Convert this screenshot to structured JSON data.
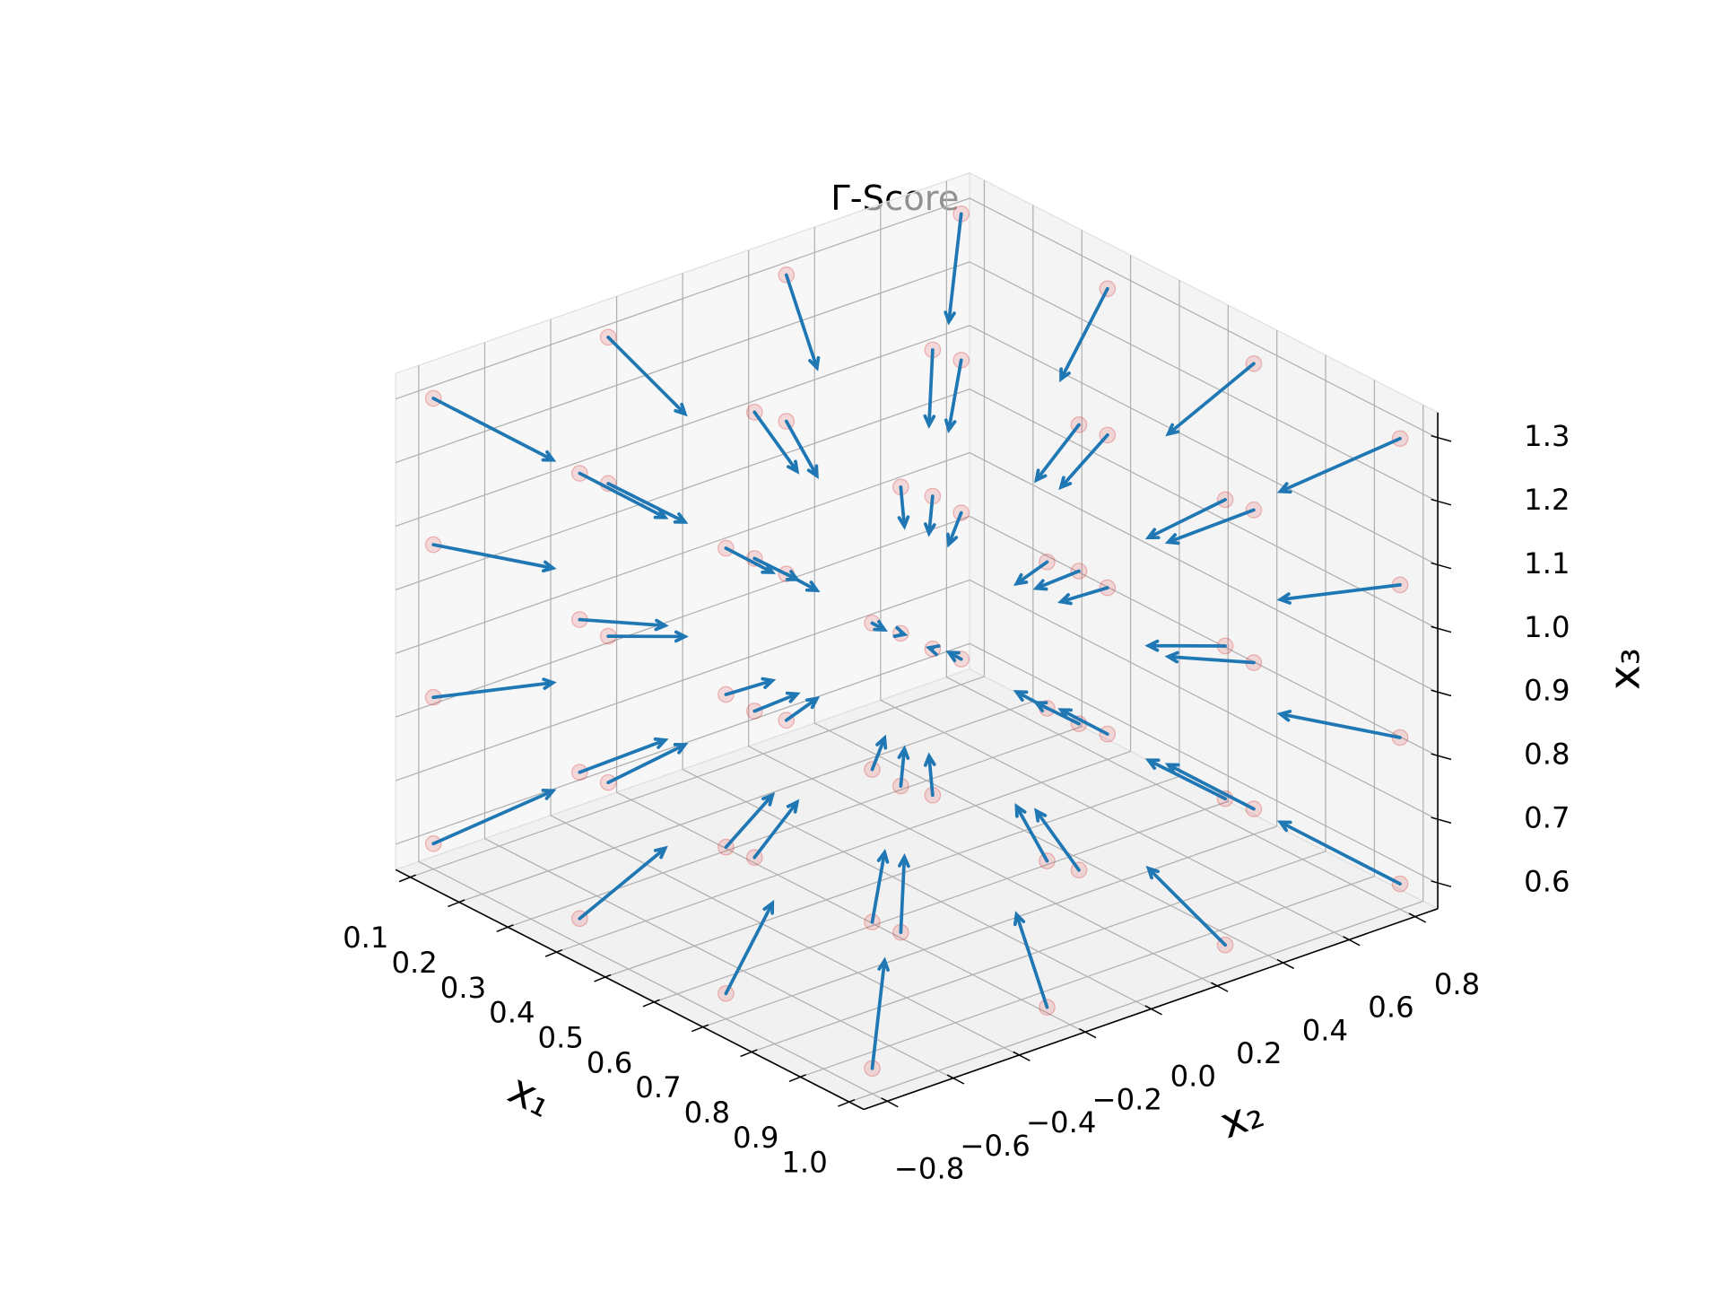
{
  "chart_data": {
    "type": "quiver3d",
    "title": "Γ-Score",
    "xlabel": "x₁",
    "ylabel": "x₂",
    "zlabel": "x₃",
    "xlim": [
      0.07,
      1.03
    ],
    "ylim": [
      -0.87,
      0.87
    ],
    "zlim": [
      0.56,
      1.34
    ],
    "xticks": [
      0.1,
      0.2,
      0.3,
      0.4,
      0.5,
      0.6,
      0.7,
      0.8,
      0.9,
      {
        "value": 1,
        "label": "1.0"
      }
    ],
    "yticks": [
      {
        "value": -0.8,
        "label": "−0.8"
      },
      {
        "value": -0.6,
        "label": "−0.6"
      },
      {
        "value": -0.4,
        "label": "−0.4"
      },
      {
        "value": -0.2,
        "label": "−0.2"
      },
      {
        "value": 0,
        "label": "0.0"
      },
      0.2,
      0.4,
      0.6,
      0.8
    ],
    "zticks": [
      0.6,
      0.7,
      0.8,
      0.9,
      {
        "value": 1,
        "label": "1.0"
      },
      1.1,
      1.2,
      1.3
    ],
    "grid": true,
    "arrow_color": "#1f77b4",
    "point_color": "#d62728",
    "arrows": [
      [
        0.1,
        -0.8,
        0.6,
        0.11,
        0.2,
        0.09
      ],
      [
        0.1,
        -0.8,
        0.83,
        0.11,
        0.2,
        0.03
      ],
      [
        0.1,
        -0.8,
        1.07,
        0.11,
        0.2,
        -0.03
      ],
      [
        0.1,
        -0.8,
        1.3,
        0.11,
        0.2,
        -0.09
      ],
      [
        0.1,
        -0.27,
        0.6,
        0.11,
        0.07,
        0.09
      ],
      [
        0.1,
        -0.27,
        0.83,
        0.11,
        0.07,
        0.03
      ],
      [
        0.1,
        -0.27,
        1.07,
        0.11,
        0.07,
        -0.03
      ],
      [
        0.1,
        -0.27,
        1.3,
        0.11,
        0.07,
        -0.09
      ],
      [
        0.1,
        0.27,
        0.6,
        0.11,
        -0.07,
        0.09
      ],
      [
        0.1,
        0.27,
        0.83,
        0.11,
        -0.07,
        0.03
      ],
      [
        0.1,
        0.27,
        1.07,
        0.11,
        -0.07,
        -0.03
      ],
      [
        0.1,
        0.27,
        1.3,
        0.11,
        -0.07,
        -0.09
      ],
      [
        0.1,
        0.8,
        0.6,
        0.11,
        -0.2,
        0.09
      ],
      [
        0.1,
        0.8,
        0.83,
        0.11,
        -0.2,
        0.03
      ],
      [
        0.1,
        0.8,
        1.07,
        0.11,
        -0.2,
        -0.03
      ],
      [
        0.1,
        0.8,
        1.3,
        0.11,
        -0.2,
        -0.09
      ],
      [
        0.4,
        -0.8,
        0.6,
        0.04,
        0.2,
        0.09
      ],
      [
        0.4,
        -0.8,
        0.83,
        0.04,
        0.2,
        0.03
      ],
      [
        0.4,
        -0.8,
        1.07,
        0.04,
        0.2,
        -0.03
      ],
      [
        0.4,
        -0.8,
        1.3,
        0.04,
        0.2,
        -0.09
      ],
      [
        0.4,
        -0.27,
        0.6,
        0.04,
        0.07,
        0.09
      ],
      [
        0.4,
        -0.27,
        0.83,
        0.04,
        0.07,
        0.03
      ],
      [
        0.4,
        -0.27,
        1.07,
        0.04,
        0.07,
        -0.03
      ],
      [
        0.4,
        -0.27,
        1.3,
        0.04,
        0.07,
        -0.09
      ],
      [
        0.4,
        0.27,
        0.6,
        0.04,
        -0.07,
        0.09
      ],
      [
        0.4,
        0.27,
        0.83,
        0.04,
        -0.07,
        0.03
      ],
      [
        0.4,
        0.27,
        1.07,
        0.04,
        -0.07,
        -0.03
      ],
      [
        0.4,
        0.27,
        1.3,
        0.04,
        -0.07,
        -0.09
      ],
      [
        0.4,
        0.8,
        0.6,
        0.04,
        -0.2,
        0.09
      ],
      [
        0.4,
        0.8,
        0.83,
        0.04,
        -0.2,
        0.03
      ],
      [
        0.4,
        0.8,
        1.07,
        0.04,
        -0.2,
        -0.03
      ],
      [
        0.4,
        0.8,
        1.3,
        0.04,
        -0.2,
        -0.09
      ],
      [
        0.7,
        -0.8,
        0.6,
        -0.04,
        0.2,
        0.09
      ],
      [
        0.7,
        -0.8,
        0.83,
        -0.04,
        0.2,
        0.03
      ],
      [
        0.7,
        -0.8,
        1.07,
        -0.04,
        0.2,
        -0.03
      ],
      [
        0.7,
        -0.8,
        1.3,
        -0.04,
        0.2,
        -0.09
      ],
      [
        0.7,
        -0.27,
        0.6,
        -0.04,
        0.07,
        0.09
      ],
      [
        0.7,
        -0.27,
        0.83,
        -0.04,
        0.07,
        0.03
      ],
      [
        0.7,
        -0.27,
        1.07,
        -0.04,
        0.07,
        -0.03
      ],
      [
        0.7,
        -0.27,
        1.3,
        -0.04,
        0.07,
        -0.09
      ],
      [
        0.7,
        0.27,
        0.6,
        -0.04,
        -0.07,
        0.09
      ],
      [
        0.7,
        0.27,
        0.83,
        -0.04,
        -0.07,
        0.03
      ],
      [
        0.7,
        0.27,
        1.07,
        -0.04,
        -0.07,
        -0.03
      ],
      [
        0.7,
        0.27,
        1.3,
        -0.04,
        -0.07,
        -0.09
      ],
      [
        0.7,
        0.8,
        0.6,
        -0.04,
        -0.2,
        0.09
      ],
      [
        0.7,
        0.8,
        0.83,
        -0.04,
        -0.2,
        0.03
      ],
      [
        0.7,
        0.8,
        1.07,
        -0.04,
        -0.2,
        -0.03
      ],
      [
        0.7,
        0.8,
        1.3,
        -0.04,
        -0.2,
        -0.09
      ],
      [
        1.0,
        -0.8,
        0.6,
        -0.11,
        0.2,
        0.09
      ],
      [
        1.0,
        -0.8,
        0.83,
        -0.11,
        0.2,
        0.03
      ],
      [
        1.0,
        -0.8,
        1.07,
        -0.11,
        0.2,
        -0.03
      ],
      [
        1.0,
        -0.8,
        1.3,
        -0.11,
        0.2,
        -0.09
      ],
      [
        1.0,
        -0.27,
        0.6,
        -0.11,
        0.07,
        0.09
      ],
      [
        1.0,
        -0.27,
        0.83,
        -0.11,
        0.07,
        0.03
      ],
      [
        1.0,
        -0.27,
        1.07,
        -0.11,
        0.07,
        -0.03
      ],
      [
        1.0,
        -0.27,
        1.3,
        -0.11,
        0.07,
        -0.09
      ],
      [
        1.0,
        0.27,
        0.6,
        -0.11,
        -0.07,
        0.09
      ],
      [
        1.0,
        0.27,
        0.83,
        -0.11,
        -0.07,
        0.03
      ],
      [
        1.0,
        0.27,
        1.07,
        -0.11,
        -0.07,
        -0.03
      ],
      [
        1.0,
        0.27,
        1.3,
        -0.11,
        -0.07,
        -0.09
      ],
      [
        1.0,
        0.8,
        0.6,
        -0.11,
        -0.2,
        0.09
      ],
      [
        1.0,
        0.8,
        0.83,
        -0.11,
        -0.2,
        0.03
      ],
      [
        1.0,
        0.8,
        1.07,
        -0.11,
        -0.2,
        -0.03
      ],
      [
        1.0,
        0.8,
        1.3,
        -0.11,
        -0.2,
        -0.09
      ]
    ]
  }
}
